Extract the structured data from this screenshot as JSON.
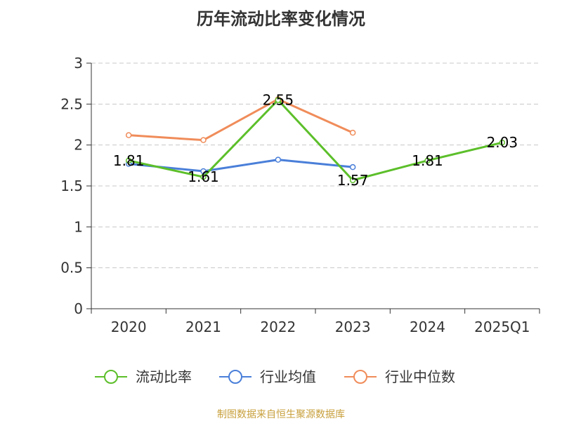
{
  "chart_data": {
    "type": "line",
    "title": "历年流动比率变化情况",
    "categories": [
      "2020",
      "2021",
      "2022",
      "2023",
      "2024",
      "2025Q1"
    ],
    "ylim": [
      0,
      3
    ],
    "yticks": [
      "0",
      "0.5",
      "1",
      "1.5",
      "2",
      "2.5",
      "3"
    ],
    "grid": true,
    "legend_position": "bottom",
    "series": [
      {
        "name": "流动比率",
        "color": "#5cbf2a",
        "values": [
          1.81,
          1.61,
          2.55,
          1.57,
          1.81,
          2.03
        ],
        "labels": [
          "1.81",
          "1.61",
          "2.55",
          "1.57",
          "1.81",
          "2.03"
        ]
      },
      {
        "name": "行业均值",
        "color": "#4a7fd9",
        "values": [
          1.77,
          1.68,
          1.82,
          1.73,
          null,
          null
        ]
      },
      {
        "name": "行业中位数",
        "color": "#f08c5a",
        "values": [
          2.12,
          2.06,
          2.56,
          2.15,
          null,
          null
        ]
      }
    ]
  },
  "source": "制图数据来自恒生聚源数据库"
}
